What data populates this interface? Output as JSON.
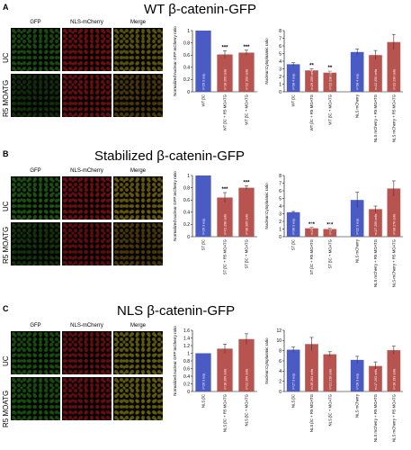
{
  "figure": {
    "panels": [
      {
        "letter": "A",
        "title": "WT β-catenin-GFP",
        "columns": [
          "GFP",
          "NLS-mCherry",
          "Merge"
        ],
        "rows": [
          "UC",
          "R5 MOATG"
        ],
        "images": [
          [
            "rgb(28,80,18)",
            "rgb(120,14,18)",
            "rgb(96,90,14)"
          ],
          [
            "rgb(18,50,10)",
            "rgb(115,14,18)",
            "rgb(80,60,10)"
          ]
        ]
      },
      {
        "letter": "B",
        "title": "Stabilized β-catenin-GFP",
        "columns": [
          "GFP",
          "NLS-mCherry",
          "Merge"
        ],
        "rows": [
          "UC",
          "R5 MOATG"
        ],
        "images": [
          [
            "rgb(30,90,15)",
            "rgb(120,14,18)",
            "rgb(110,95,12)"
          ],
          [
            "rgb(20,55,12)",
            "rgb(105,12,16)",
            "rgb(80,60,10)"
          ]
        ]
      },
      {
        "letter": "C",
        "title": "NLS β-catenin-GFP",
        "columns": [
          "GFP",
          "NLS-mCherry",
          "Merge"
        ],
        "rows": [
          "UC",
          "R5 MOATG"
        ],
        "images": [
          [
            "rgb(25,85,12)",
            "rgb(110,14,18)",
            "rgb(105,100,12)"
          ],
          [
            "rgb(25,85,12)",
            "rgb(110,14,18)",
            "rgb(105,100,12)"
          ]
        ]
      }
    ]
  },
  "chart_data": [
    {
      "type": "bar",
      "panel": "A",
      "ylabel": "Normalized nuclear GFP:mCherry ratio",
      "ylim": [
        0,
        1
      ],
      "yticks": [
        0,
        0.2,
        0.4,
        0.6,
        0.8,
        1
      ],
      "categories": [
        "WT βC",
        "WT βC + R5 MOATG",
        "WT βC + MOATG"
      ],
      "values": [
        1.0,
        0.61,
        0.64
      ],
      "errors": [
        0,
        0.06,
        0.04
      ],
      "colors": [
        "#4a5bc4",
        "#b85450",
        "#b85450"
      ],
      "inbar": [
        "n=29 3 exp.",
        "n=18 209 cells",
        "n=22 193 cells"
      ],
      "sig": [
        "",
        "***",
        "***"
      ]
    },
    {
      "type": "bar",
      "panel": "A",
      "ylabel": "Nuclear:Cytoplasmic ratio",
      "ylim": [
        0,
        8
      ],
      "yticks": [
        0,
        1,
        2,
        3,
        4,
        5,
        6,
        7,
        8
      ],
      "categories": [
        "WT βC",
        "WT βC + R5 MOATG",
        "WT βC + MOATG",
        "NLS mCherry",
        "NLS mCherry + R5 MOATG",
        "NLS mCherry + R5 MOATG"
      ],
      "values": [
        3.6,
        2.8,
        2.5,
        5.2,
        4.8,
        6.5
      ],
      "errors": [
        0.2,
        0.2,
        0.2,
        0.4,
        0.6,
        1.0
      ],
      "colors": [
        "#4a5bc4",
        "#b85450",
        "#b85450",
        "#4a5bc4",
        "#b85450",
        "#b85450"
      ],
      "inbar": [
        "n=38 4 exp.",
        "n=29 259 cells",
        "n=22 238 cells",
        "n=38 4 exp.",
        "n=22 250 cells",
        "n=23 230 cells"
      ],
      "sig": [
        "",
        "**",
        "**",
        "",
        "",
        ""
      ]
    },
    {
      "type": "bar",
      "panel": "B",
      "ylabel": "Normalized nuclear GFP:mCherry ratio",
      "ylim": [
        0,
        1
      ],
      "yticks": [
        0,
        0.2,
        0.4,
        0.6,
        0.8,
        1
      ],
      "categories": [
        "ST βC",
        "ST βC + R5 MOATG",
        "ST βC + MOATG"
      ],
      "values": [
        1.0,
        0.64,
        0.8
      ],
      "errors": [
        0,
        0.08,
        0.03
      ],
      "colors": [
        "#4a5bc4",
        "#b85450",
        "#b85450"
      ],
      "inbar": [
        "n=29 3 exp.",
        "n=41 298 cells",
        "n=38 365 cells"
      ],
      "sig": [
        "",
        "***",
        "***"
      ]
    },
    {
      "type": "bar",
      "panel": "B",
      "ylabel": "Nuclear:Cytoplasmic ratio",
      "ylim": [
        0,
        8
      ],
      "yticks": [
        0,
        1,
        2,
        3,
        4,
        5,
        6,
        7,
        8
      ],
      "categories": [
        "ST βC",
        "ST βC + R5 MOATG",
        "ST βC + MOATG",
        "NLS mCherry",
        "NLS mCherry + R5 MOATG",
        "NLS-mCherry + R5 MOATG"
      ],
      "values": [
        3.2,
        1.1,
        1.0,
        4.8,
        3.6,
        6.3
      ],
      "errors": [
        0.1,
        0.1,
        0.1,
        1.0,
        0.4,
        1.0
      ],
      "colors": [
        "#4a5bc4",
        "#b85450",
        "#b85450",
        "#4a5bc4",
        "#b85450",
        "#b85450"
      ],
      "inbar": [
        "n=38 3 exp.",
        "n=29 259 cells",
        "n=22 298 cells",
        "n=22 3 exp.",
        "n=27 259 cells",
        "n=38 276 cells"
      ],
      "sig": [
        "",
        "***",
        "***",
        "",
        "",
        ""
      ]
    },
    {
      "type": "bar",
      "panel": "C",
      "ylabel": "Normalized nuclear GFP:mCherry ratio",
      "ylim": [
        0,
        1.6
      ],
      "yticks": [
        0,
        0.2,
        0.4,
        0.6,
        0.8,
        1,
        1.2,
        1.4,
        1.6
      ],
      "categories": [
        "NLS βC",
        "NLS βC + R5 MOATG",
        "NLS βC + MOATG"
      ],
      "values": [
        1.0,
        1.12,
        1.37
      ],
      "errors": [
        0,
        0.12,
        0.14
      ],
      "colors": [
        "#4a5bc4",
        "#b85450",
        "#b85450"
      ],
      "inbar": [
        "n=26 3 exp.",
        "n=18 209 cells",
        "n=22 209 cells"
      ],
      "sig": [
        "",
        "",
        ""
      ]
    },
    {
      "type": "bar",
      "panel": "C",
      "ylabel": "Nuclear:Cytoplasmic ratio",
      "ylim": [
        0,
        12
      ],
      "yticks": [
        0,
        2,
        4,
        6,
        8,
        10,
        12
      ],
      "categories": [
        "NLS βC",
        "NLS βC + R5 MOATG",
        "NLS βC + MOATG",
        "NLS mCherry",
        "NLS mCherry + R5 MOATG",
        "NLS mCherry + R5 MOATG"
      ],
      "values": [
        8.2,
        9.3,
        7.3,
        6.2,
        5.0,
        8.1
      ],
      "errors": [
        0.5,
        1.3,
        0.5,
        0.7,
        0.8,
        0.8
      ],
      "colors": [
        "#4a5bc4",
        "#b85450",
        "#b85450",
        "#4a5bc4",
        "#b85450",
        "#b85450"
      ],
      "inbar": [
        "n=27 3 exp.",
        "n=19 204 cells",
        "n=21 216 cells",
        "n=28 3 exp.",
        "n=17 203 cells",
        "n=18 193 cells"
      ],
      "sig": [
        "",
        "",
        "",
        "",
        "",
        ""
      ]
    }
  ]
}
